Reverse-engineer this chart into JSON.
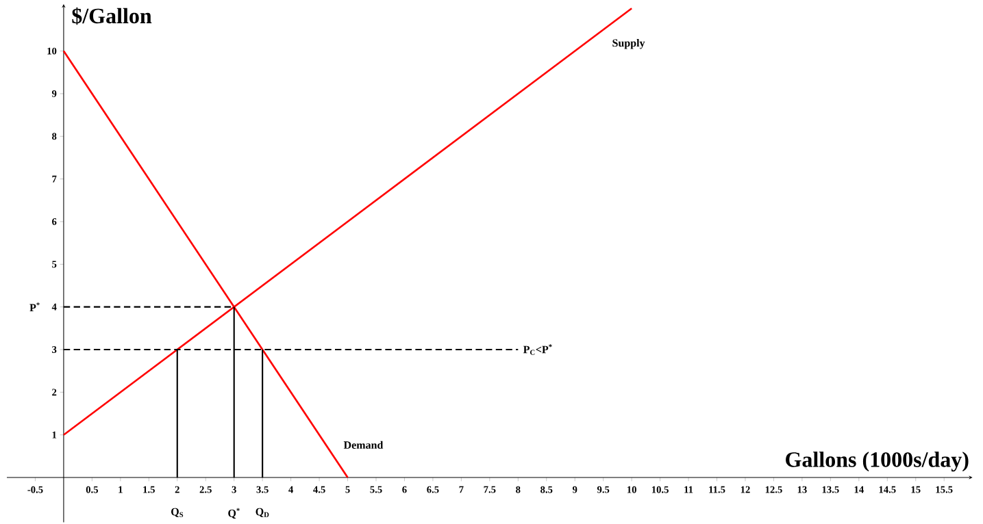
{
  "chart_data": {
    "type": "line",
    "xlabel": "Gallons (1000s/day)",
    "ylabel": "$/Gallon",
    "xlim": [
      -1,
      16
    ],
    "ylim": [
      -1.05,
      11.1
    ],
    "xticks": [
      -0.5,
      0.5,
      1,
      1.5,
      2,
      2.5,
      3,
      3.5,
      4,
      4.5,
      5,
      5.5,
      6,
      6.5,
      7,
      7.5,
      8,
      8.5,
      9,
      9.5,
      10,
      10.5,
      11,
      11.5,
      12,
      12.5,
      13,
      13.5,
      14,
      14.5,
      15,
      15.5
    ],
    "yticks": [
      1,
      2,
      3,
      4,
      5,
      6,
      7,
      8,
      9,
      10
    ],
    "grid": false,
    "marker": "none",
    "series": [
      {
        "name": "Supply",
        "color": "#ff0000",
        "x": [
          0,
          10
        ],
        "values": [
          1,
          11
        ]
      },
      {
        "name": "Demand",
        "color": "#ff0000",
        "x": [
          0,
          5
        ],
        "values": [
          10,
          0
        ]
      },
      {
        "color": "#000000",
        "line_style": "dashed",
        "x": [
          0,
          3
        ],
        "values": [
          4,
          4
        ]
      },
      {
        "color": "#000000",
        "line_style": "dashed",
        "x": [
          0,
          8
        ],
        "values": [
          3,
          3
        ]
      },
      {
        "color": "#000000",
        "line_style": "solid",
        "x": [
          2,
          2
        ],
        "values": [
          0,
          3
        ]
      },
      {
        "color": "#000000",
        "line_style": "solid",
        "x": [
          3,
          3
        ],
        "values": [
          0,
          4
        ]
      },
      {
        "color": "#000000",
        "line_style": "solid",
        "x": [
          3.5,
          3.5
        ],
        "values": [
          0,
          3
        ]
      }
    ],
    "annotations": [
      {
        "text": "P$^{*}$",
        "x": 0,
        "y": 4
      },
      {
        "text": "P$_{C}$<P$^{*}$",
        "x": 8,
        "y": 3
      },
      {
        "text": "Q$_{S}$",
        "x": 2,
        "y": 0
      },
      {
        "text": "Q$^{*}$",
        "x": 3,
        "y": 0
      },
      {
        "text": "Q$_{D}$",
        "x": 3.5,
        "y": 0
      }
    ]
  }
}
